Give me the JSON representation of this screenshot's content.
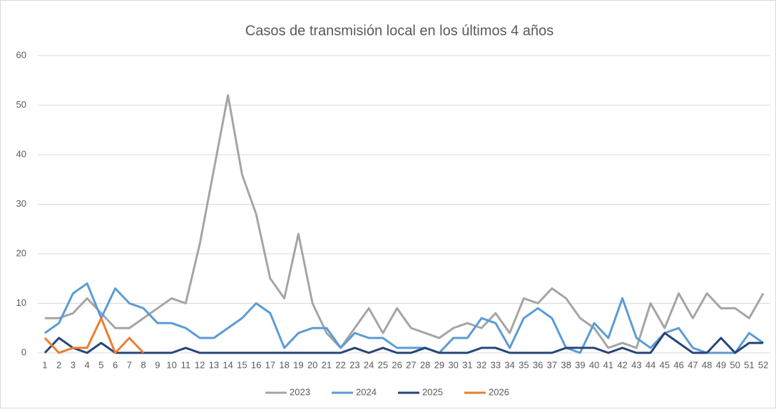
{
  "chart_data": {
    "type": "line",
    "title": "Casos de transmisión local en los últimos 4 años",
    "categories": [
      "1",
      "2",
      "3",
      "4",
      "5",
      "6",
      "7",
      "8",
      "9",
      "10",
      "11",
      "12",
      "13",
      "14",
      "15",
      "16",
      "17",
      "18",
      "19",
      "20",
      "21",
      "22",
      "23",
      "24",
      "25",
      "26",
      "27",
      "28",
      "29",
      "30",
      "31",
      "32",
      "33",
      "34",
      "35",
      "36",
      "37",
      "38",
      "39",
      "40",
      "41",
      "42",
      "43",
      "44",
      "45",
      "46",
      "47",
      "48",
      "49",
      "50",
      "51",
      "52"
    ],
    "series": [
      {
        "name": "2023",
        "color": "#a5a5a5",
        "values": [
          7,
          7,
          8,
          11,
          8,
          5,
          5,
          7,
          9,
          11,
          10,
          22,
          37,
          52,
          36,
          28,
          15,
          11,
          24,
          10,
          4,
          1,
          5,
          9,
          4,
          9,
          5,
          4,
          3,
          5,
          6,
          5,
          8,
          4,
          11,
          10,
          13,
          11,
          7,
          5,
          1,
          2,
          1,
          10,
          5,
          12,
          7,
          12,
          9,
          9,
          7,
          12
        ]
      },
      {
        "name": "2024",
        "color": "#5b9bd5",
        "values": [
          4,
          6,
          12,
          14,
          7,
          13,
          10,
          9,
          6,
          6,
          5,
          3,
          3,
          5,
          7,
          10,
          8,
          1,
          4,
          5,
          5,
          1,
          4,
          3,
          3,
          1,
          1,
          1,
          0,
          3,
          3,
          7,
          6,
          1,
          7,
          9,
          7,
          1,
          0,
          6,
          3,
          11,
          3,
          1,
          4,
          5,
          1,
          0,
          0,
          0,
          4,
          2
        ]
      },
      {
        "name": "2025",
        "color": "#264478",
        "values": [
          0,
          3,
          1,
          0,
          2,
          0,
          0,
          0,
          0,
          0,
          1,
          0,
          0,
          0,
          0,
          0,
          0,
          0,
          0,
          0,
          0,
          0,
          1,
          0,
          1,
          0,
          0,
          1,
          0,
          0,
          0,
          1,
          1,
          0,
          0,
          0,
          0,
          1,
          1,
          1,
          0,
          1,
          0,
          0,
          4,
          2,
          0,
          0,
          3,
          0,
          2,
          2
        ]
      },
      {
        "name": "2026",
        "color": "#ed7d31",
        "values": [
          3,
          0,
          1,
          1,
          7,
          0,
          3,
          0,
          null,
          null,
          null,
          null,
          null,
          null,
          null,
          null,
          null,
          null,
          null,
          null,
          null,
          null,
          null,
          null,
          null,
          null,
          null,
          null,
          null,
          null,
          null,
          null,
          null,
          null,
          null,
          null,
          null,
          null,
          null,
          null,
          null,
          null,
          null,
          null,
          null,
          null,
          null,
          null,
          null,
          null,
          null,
          null
        ]
      }
    ],
    "ylim": [
      0,
      60
    ],
    "yticks": [
      0,
      10,
      20,
      30,
      40,
      50,
      60
    ],
    "grid": true,
    "legend": "bottom"
  }
}
